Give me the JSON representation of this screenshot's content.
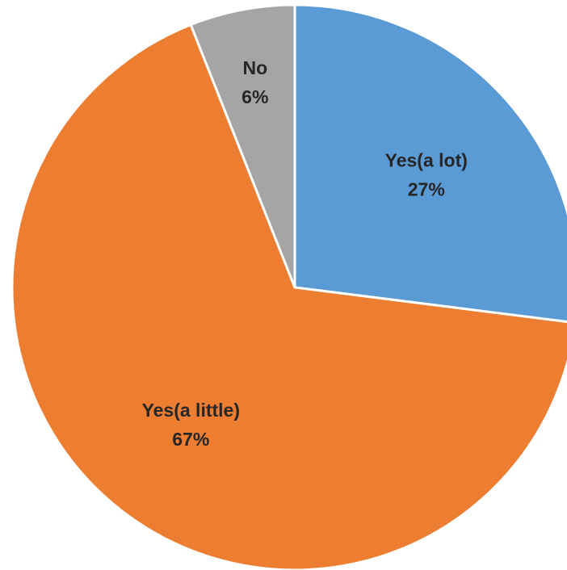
{
  "chart_data": {
    "type": "pie",
    "title": "",
    "slices": [
      {
        "label": "Yes(a lot)",
        "value": 27,
        "value_label": "27%",
        "color": "#5B9BD5"
      },
      {
        "label": "Yes(a little)",
        "value": 67,
        "value_label": "67%",
        "color": "#ED7D31"
      },
      {
        "label": "No",
        "value": 6,
        "value_label": "6%",
        "color": "#A5A5A5"
      }
    ],
    "start": "12 o'clock",
    "direction": "clockwise",
    "legend": "none",
    "labels": "inside"
  }
}
